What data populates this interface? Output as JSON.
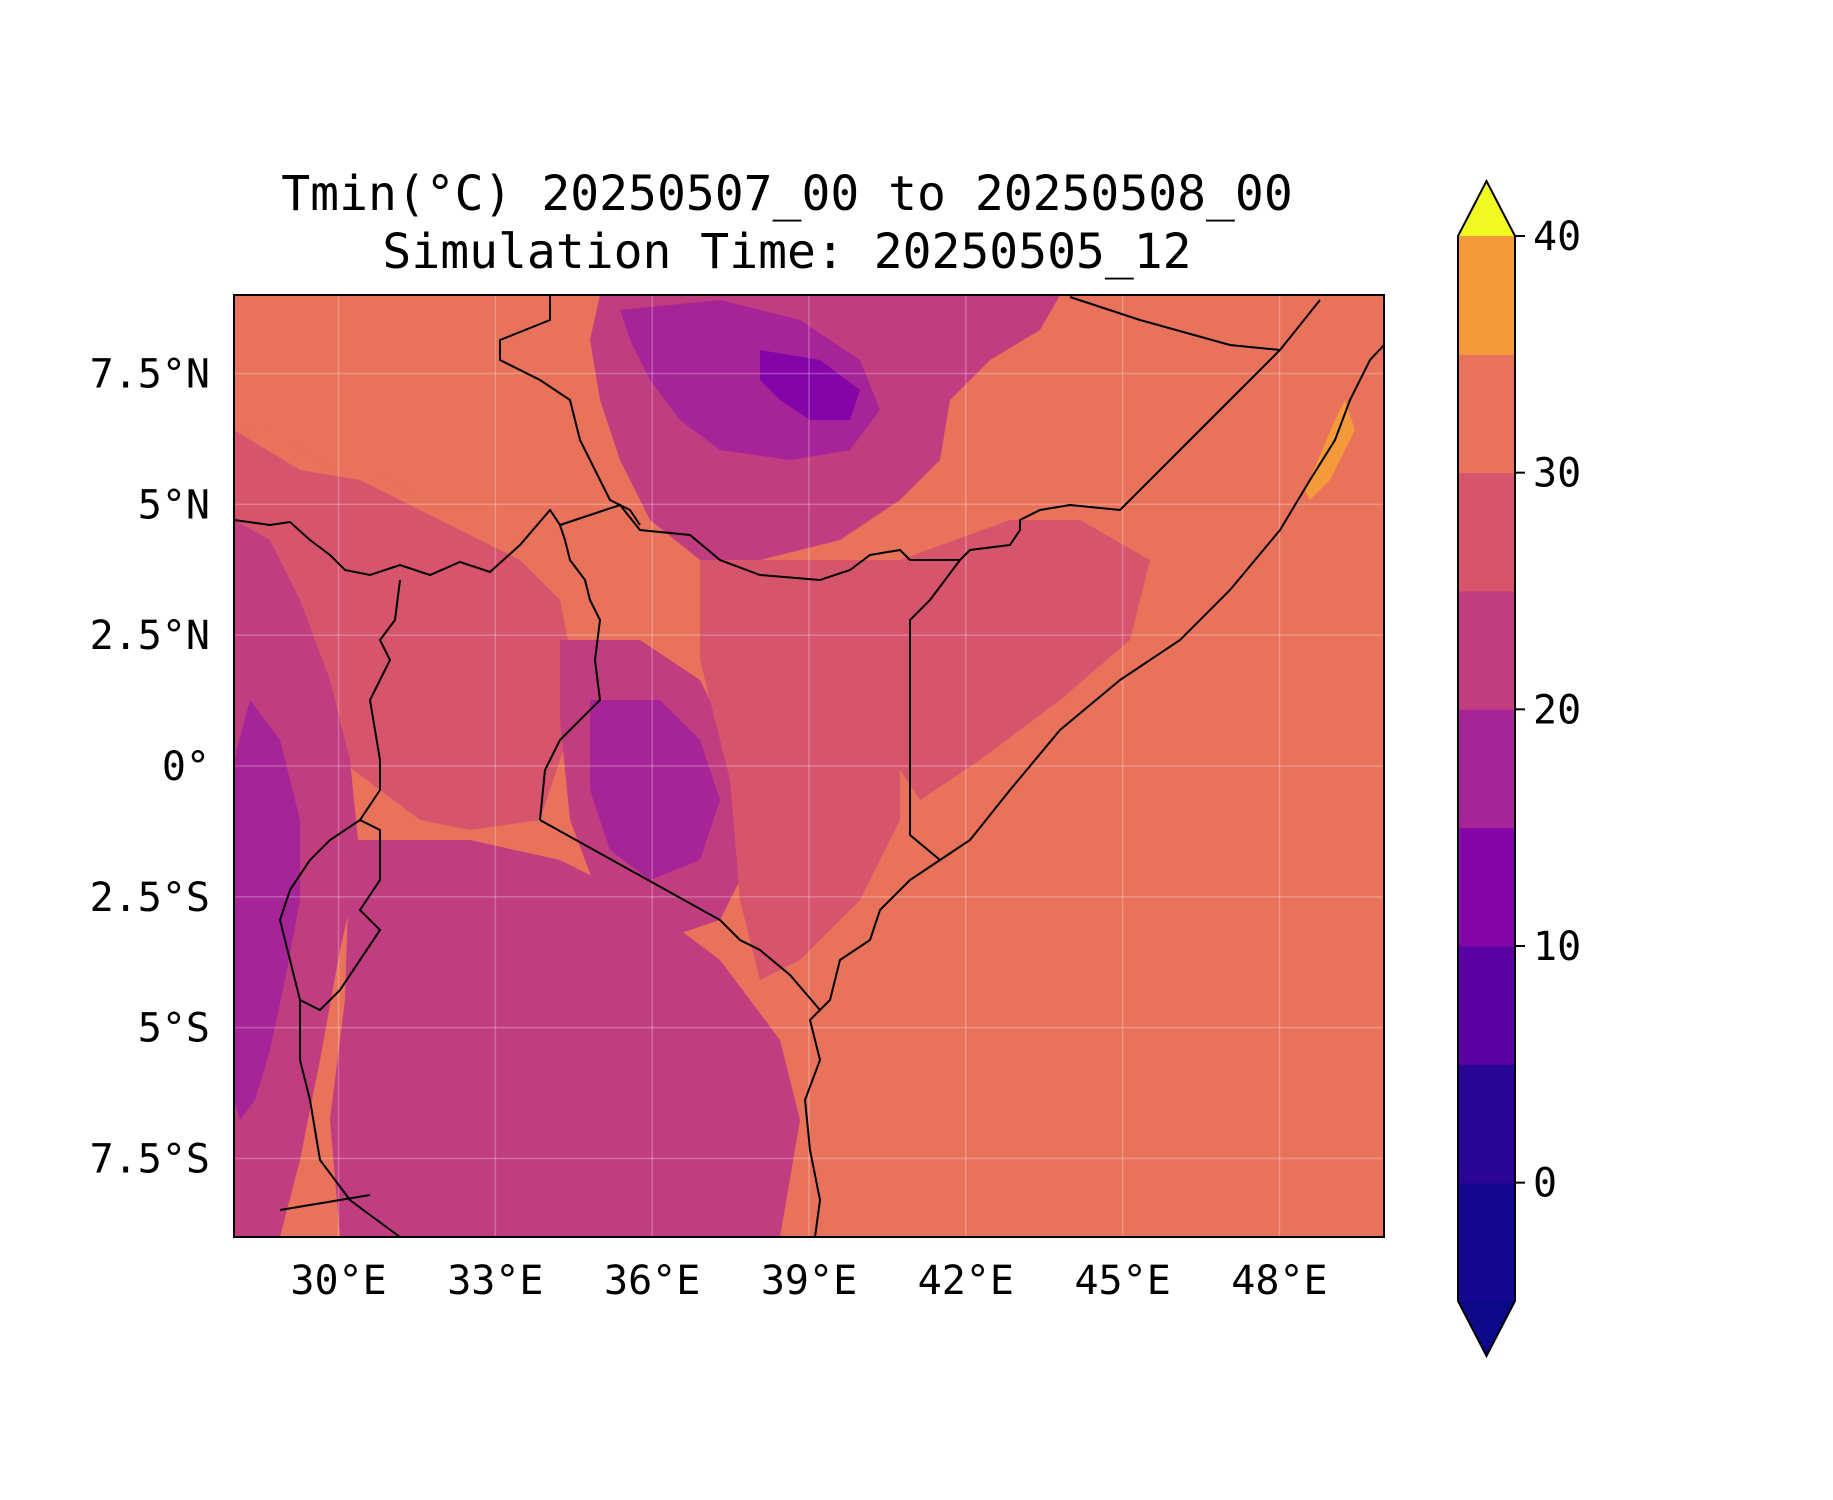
{
  "title": {
    "line1": "Tmin(°C) 20250507_00 to 20250508_00",
    "line2": "Simulation Time: 20250505_12"
  },
  "map": {
    "extent": {
      "lon_min": 28.0,
      "lon_max": 50.0,
      "lat_min": -9.0,
      "lat_max": 9.0
    },
    "x_ticks": [
      {
        "value": 30,
        "label": "30°E"
      },
      {
        "value": 33,
        "label": "33°E"
      },
      {
        "value": 36,
        "label": "36°E"
      },
      {
        "value": 39,
        "label": "39°E"
      },
      {
        "value": 42,
        "label": "42°E"
      },
      {
        "value": 45,
        "label": "45°E"
      },
      {
        "value": 48,
        "label": "48°E"
      }
    ],
    "y_ticks": [
      {
        "value": 7.5,
        "label": "7.5°N"
      },
      {
        "value": 5,
        "label": "5°N"
      },
      {
        "value": 2.5,
        "label": "2.5°N"
      },
      {
        "value": 0,
        "label": "0°"
      },
      {
        "value": -2.5,
        "label": "2.5°S"
      },
      {
        "value": -5,
        "label": "5°S"
      },
      {
        "value": -7.5,
        "label": "7.5°S"
      }
    ],
    "gridlines": true,
    "background_color": "#e8735a"
  },
  "colorbar": {
    "levels": [
      -5,
      0,
      5,
      10,
      15,
      20,
      25,
      30,
      35,
      40
    ],
    "extend": "both",
    "colors": [
      "#15078f",
      "#2a0594",
      "#5b02a3",
      "#8405a7",
      "#a62497",
      "#c03d80",
      "#d6546c",
      "#e8735a",
      "#f59a3a",
      "#fdb82c",
      "#f0e022"
    ],
    "under_color": "#0d0887",
    "over_color": "#f0f921",
    "ticks": [
      {
        "value": 0,
        "label": "0"
      },
      {
        "value": 10,
        "label": "10"
      },
      {
        "value": 20,
        "label": "20"
      },
      {
        "value": 30,
        "label": "30"
      },
      {
        "value": 40,
        "label": "40"
      }
    ]
  }
}
